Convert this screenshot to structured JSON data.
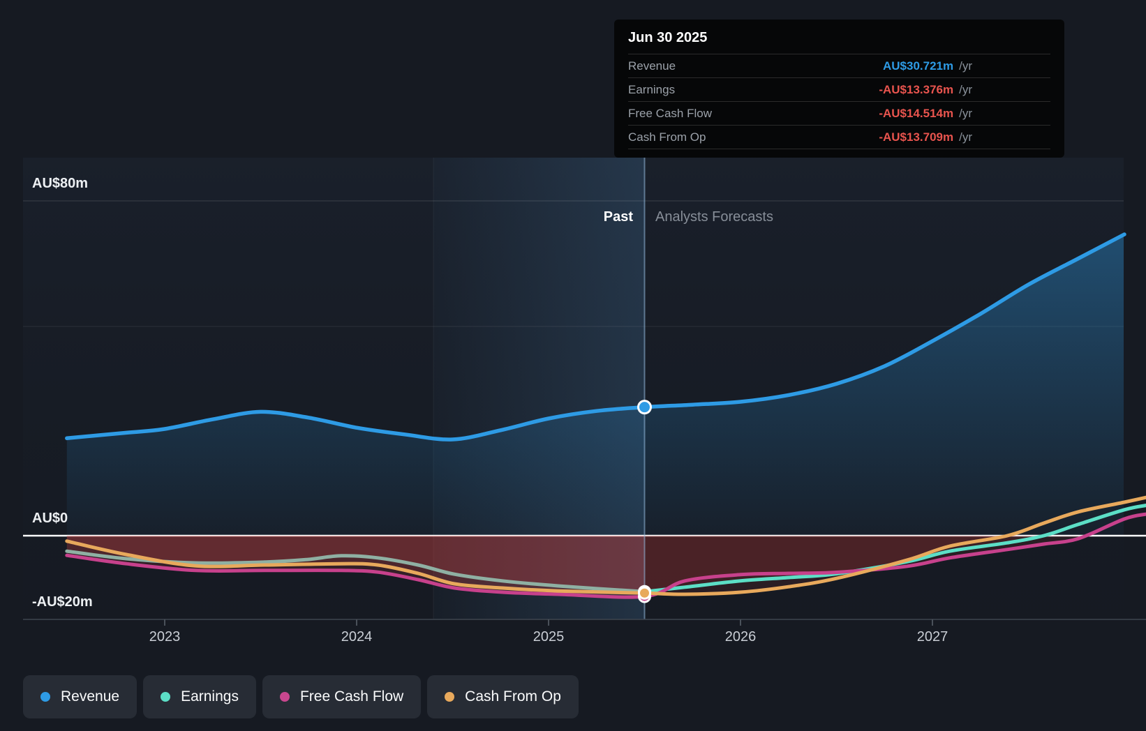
{
  "tooltip": {
    "date": "Jun 30 2025",
    "rows": [
      {
        "label": "Revenue",
        "value": "AU$30.721m",
        "suffix": "/yr",
        "color": "#2E9BE5"
      },
      {
        "label": "Earnings",
        "value": "-AU$13.376m",
        "suffix": "/yr",
        "color": "#E8544E"
      },
      {
        "label": "Free Cash Flow",
        "value": "-AU$14.514m",
        "suffix": "/yr",
        "color": "#E8544E"
      },
      {
        "label": "Cash From Op",
        "value": "-AU$13.709m",
        "suffix": "/yr",
        "color": "#E8544E"
      }
    ]
  },
  "zones": {
    "past": "Past",
    "forecast": "Analysts Forecasts"
  },
  "legend": [
    {
      "label": "Revenue",
      "color": "#2E9BE5"
    },
    {
      "label": "Earnings",
      "color": "#5CDEC6"
    },
    {
      "label": "Free Cash Flow",
      "color": "#C9478F"
    },
    {
      "label": "Cash From Op",
      "color": "#E8A95C"
    }
  ],
  "chart_data": {
    "type": "area",
    "currency": "AU$",
    "unit": "millions",
    "x_domain": [
      2022.49,
      2028.0
    ],
    "ylim": [
      -20,
      80
    ],
    "divider_t": 2025.5,
    "divider_date": "Jun 30 2025",
    "highlight_band": [
      2024.4,
      2025.5
    ],
    "y_gridlines": [
      80,
      50
    ],
    "negative_fill": "#D64848",
    "y_ticks": [
      {
        "label": "AU$80m",
        "v": 80
      },
      {
        "label": "AU$0",
        "v": 0
      },
      {
        "label": "-AU$20m",
        "v": -20
      }
    ],
    "x_ticks": [
      {
        "label": "2023",
        "t": 2023
      },
      {
        "label": "2024",
        "t": 2024
      },
      {
        "label": "2025",
        "t": 2025
      },
      {
        "label": "2026",
        "t": 2026
      },
      {
        "label": "2027",
        "t": 2027
      }
    ],
    "series": [
      {
        "name": "Revenue",
        "color": "#2E9BE5",
        "points": [
          [
            2022.49,
            23.3
          ],
          [
            2022.8,
            24.6
          ],
          [
            2023.0,
            25.5
          ],
          [
            2023.25,
            27.8
          ],
          [
            2023.5,
            29.6
          ],
          [
            2023.75,
            28.2
          ],
          [
            2024.0,
            25.8
          ],
          [
            2024.25,
            24.2
          ],
          [
            2024.5,
            23.0
          ],
          [
            2024.75,
            25.2
          ],
          [
            2025.0,
            28.0
          ],
          [
            2025.25,
            29.8
          ],
          [
            2025.5,
            30.721
          ],
          [
            2025.75,
            31.3
          ],
          [
            2026.0,
            32.0
          ],
          [
            2026.25,
            33.6
          ],
          [
            2026.5,
            36.3
          ],
          [
            2026.75,
            40.5
          ],
          [
            2027.0,
            46.5
          ],
          [
            2027.25,
            53.0
          ],
          [
            2027.5,
            60.0
          ],
          [
            2027.75,
            66.0
          ],
          [
            2028.0,
            72.0
          ]
        ]
      },
      {
        "name": "Earnings",
        "color": "#5CDEC6",
        "color_past": "#8FB0A3",
        "points": [
          [
            2022.49,
            -3.7
          ],
          [
            2022.8,
            -5.5
          ],
          [
            2023.16,
            -6.5
          ],
          [
            2023.52,
            -6.3
          ],
          [
            2023.74,
            -5.7
          ],
          [
            2023.92,
            -4.8
          ],
          [
            2024.11,
            -5.3
          ],
          [
            2024.32,
            -7.0
          ],
          [
            2024.51,
            -9.2
          ],
          [
            2024.76,
            -10.8
          ],
          [
            2025.05,
            -12.0
          ],
          [
            2025.5,
            -13.376
          ],
          [
            2025.71,
            -12.3
          ],
          [
            2026.0,
            -10.8
          ],
          [
            2026.25,
            -10.0
          ],
          [
            2026.5,
            -9.1
          ],
          [
            2026.87,
            -6.2
          ],
          [
            2027.09,
            -3.7
          ],
          [
            2027.39,
            -1.7
          ],
          [
            2027.58,
            0.0
          ],
          [
            2027.76,
            2.7
          ],
          [
            2028.0,
            6.2
          ],
          [
            2028.12,
            7.3
          ]
        ]
      },
      {
        "name": "Free Cash Flow",
        "color": "#C7418C",
        "points": [
          [
            2022.49,
            -4.7
          ],
          [
            2022.8,
            -6.7
          ],
          [
            2023.16,
            -8.3
          ],
          [
            2023.52,
            -8.3
          ],
          [
            2023.92,
            -8.3
          ],
          [
            2024.11,
            -8.7
          ],
          [
            2024.32,
            -10.5
          ],
          [
            2024.51,
            -12.5
          ],
          [
            2024.76,
            -13.5
          ],
          [
            2025.05,
            -14.0
          ],
          [
            2025.5,
            -14.514
          ],
          [
            2025.71,
            -10.8
          ],
          [
            2026.0,
            -9.3
          ],
          [
            2026.25,
            -9.0
          ],
          [
            2026.5,
            -8.75
          ],
          [
            2026.87,
            -7.3
          ],
          [
            2027.09,
            -5.3
          ],
          [
            2027.39,
            -3.3
          ],
          [
            2027.58,
            -2.0
          ],
          [
            2027.76,
            -0.7
          ],
          [
            2028.0,
            4.0
          ],
          [
            2028.12,
            5.2
          ]
        ]
      },
      {
        "name": "Cash From Op",
        "color": "#E8A95C",
        "points": [
          [
            2022.49,
            -1.3
          ],
          [
            2022.8,
            -4.5
          ],
          [
            2023.16,
            -7.2
          ],
          [
            2023.52,
            -7.0
          ],
          [
            2023.92,
            -6.7
          ],
          [
            2024.11,
            -7.0
          ],
          [
            2024.32,
            -9.0
          ],
          [
            2024.51,
            -11.5
          ],
          [
            2024.76,
            -12.5
          ],
          [
            2025.05,
            -13.2
          ],
          [
            2025.5,
            -13.709
          ],
          [
            2025.71,
            -14.0
          ],
          [
            2026.0,
            -13.5
          ],
          [
            2026.25,
            -12.2
          ],
          [
            2026.5,
            -10.2
          ],
          [
            2026.87,
            -5.8
          ],
          [
            2027.09,
            -2.5
          ],
          [
            2027.39,
            0.0
          ],
          [
            2027.58,
            3.0
          ],
          [
            2027.76,
            5.7
          ],
          [
            2028.0,
            8.0
          ],
          [
            2028.12,
            9.2
          ]
        ]
      }
    ],
    "markers": [
      {
        "series": "Earnings",
        "t": 2025.5,
        "v": -13.376
      },
      {
        "series": "Free Cash Flow",
        "t": 2025.5,
        "v": -14.514
      },
      {
        "series": "Cash From Op",
        "t": 2025.5,
        "v": -13.709
      },
      {
        "series": "Revenue",
        "t": 2025.5,
        "v": 30.721
      }
    ]
  }
}
